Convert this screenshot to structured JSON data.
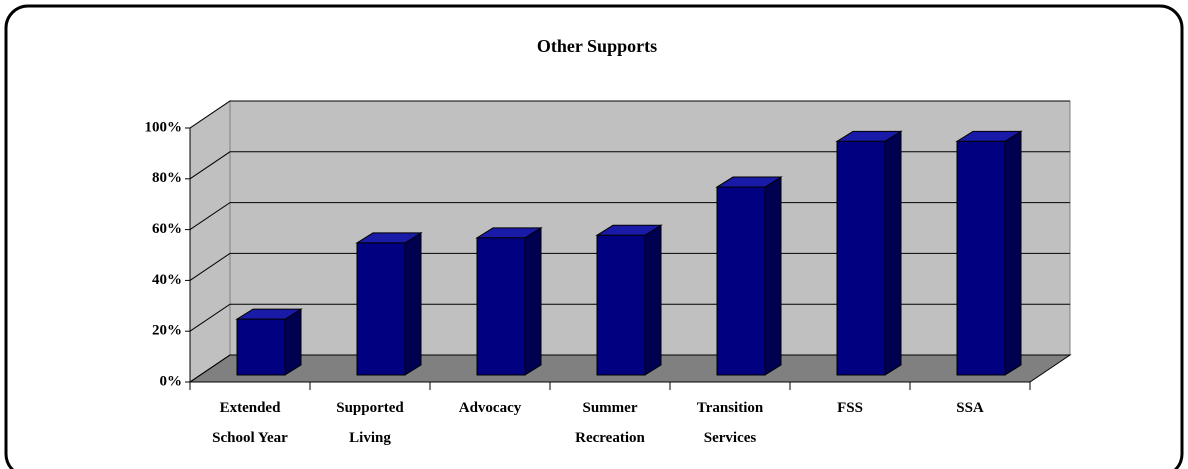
{
  "chart_data": {
    "type": "bar3d",
    "title": "Other Supports",
    "categories": [
      "Extended School Year",
      "Supported Living",
      "Advocacy",
      "Summer Recreation",
      "Transition Services",
      "FSS",
      "SSA"
    ],
    "values": [
      22,
      52,
      54,
      55,
      74,
      92,
      92
    ],
    "color": "#000080",
    "ylim": [
      0,
      100
    ],
    "yticks": [
      {
        "value": 0,
        "label": "0%"
      },
      {
        "value": 20,
        "label": "20%"
      },
      {
        "value": 40,
        "label": "40%"
      },
      {
        "value": 60,
        "label": "60%"
      },
      {
        "value": 80,
        "label": "80%"
      },
      {
        "value": 100,
        "label": "100%"
      }
    ],
    "grid": true
  }
}
